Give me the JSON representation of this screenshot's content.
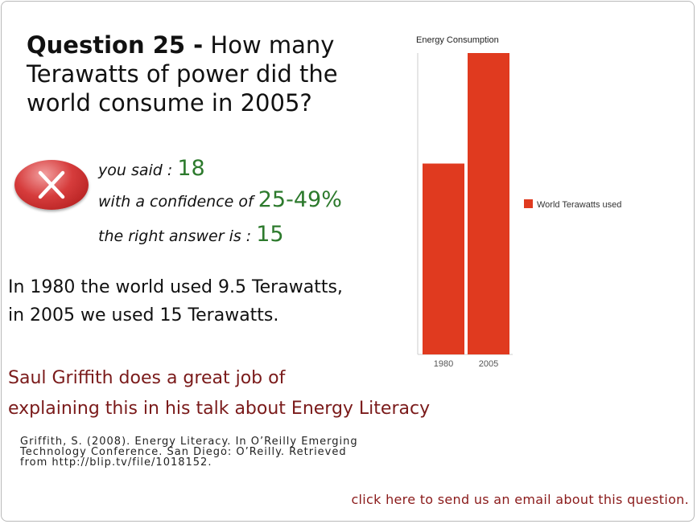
{
  "question": {
    "number_label": "Question 25 -",
    "text": "How many Terawatts of power did the world consume in 2005?"
  },
  "answer": {
    "you_said_label": "you said :",
    "you_said_value": "18",
    "confidence_label": "with a confidence of",
    "confidence_value": "25-49%",
    "right_answer_label": "the right answer is :",
    "right_answer_value": "15",
    "status_icon": "wrong-x-icon"
  },
  "explanation": {
    "lines": [
      "In 1980 the world used 9.5 Terawatts,",
      "in 2005 we used 15 Terawatts."
    ]
  },
  "talk_reference": {
    "lines": [
      "Saul Griffith does a great job of",
      "explaining this in his talk about Energy Literacy"
    ]
  },
  "citation": {
    "lines": [
      "Griffith, S. (2008). Energy Literacy. In O’Reilly Emerging",
      "Technology Conference. San Diego: O’Reilly. Retrieved",
      "from http://blip.tv/file/1018152."
    ]
  },
  "email_link": "click here to send us an email about this question.",
  "colors": {
    "bar": "#e03a1f",
    "correct_value": "#2d7a2d",
    "link": "#8a1a1a"
  },
  "chart_data": {
    "type": "bar",
    "title": "Energy Consumption",
    "categories": [
      "1980",
      "2005"
    ],
    "series": [
      {
        "name": "World Terawatts used",
        "values": [
          9.5,
          15
        ]
      }
    ],
    "xlabel": "",
    "ylabel": "",
    "ylim": [
      0,
      15
    ],
    "legend": "right",
    "grid": false
  }
}
